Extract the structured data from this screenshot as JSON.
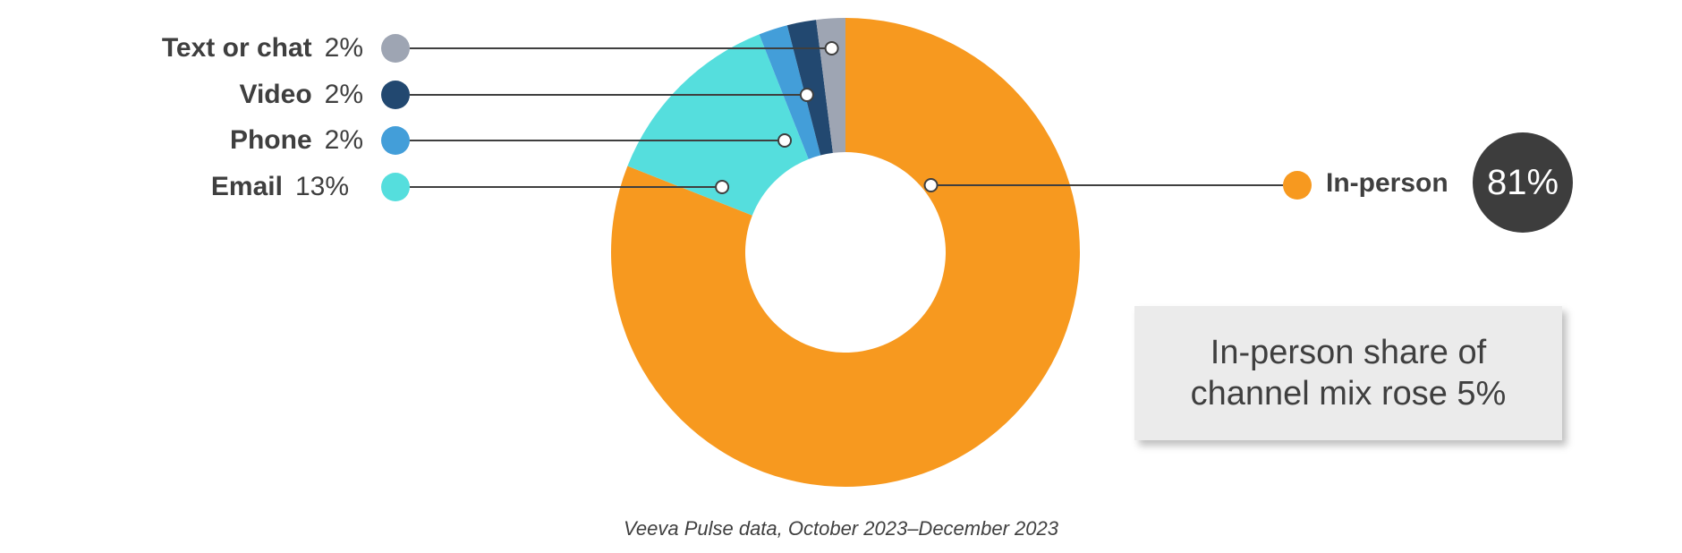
{
  "chart_data": {
    "type": "pie",
    "variant": "donut",
    "categories": [
      "In-person",
      "Email",
      "Phone",
      "Video",
      "Text or chat"
    ],
    "slices": [
      {
        "label": "In-person",
        "value": 81,
        "display": "81%",
        "color": "#f7991f"
      },
      {
        "label": "Email",
        "value": 13,
        "display": "13%",
        "color": "#55dedd"
      },
      {
        "label": "Phone",
        "value": 2,
        "display": "2%",
        "color": "#439ed9"
      },
      {
        "label": "Video",
        "value": 2,
        "display": "2%",
        "color": "#224870"
      },
      {
        "label": "Text or chat",
        "value": 2,
        "display": "2%",
        "color": "#9ea5b3"
      }
    ],
    "legend_placement": "left-and-right callouts",
    "callout": "In-person share of channel mix rose 5%",
    "source": "Veeva Pulse data, October 2023–December 2023"
  },
  "colors": {
    "text": "#3f3f3f",
    "badge": "#3d3d3d",
    "callout_background": "#ebebeb"
  }
}
